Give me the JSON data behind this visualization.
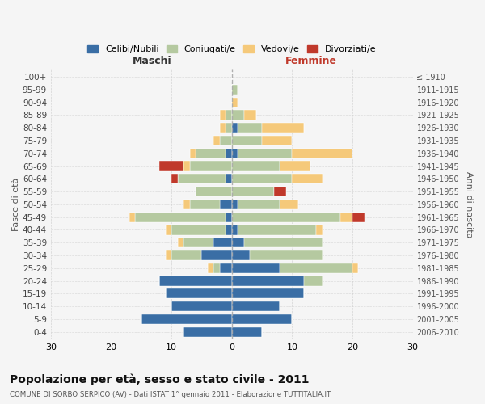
{
  "age_groups": [
    "0-4",
    "5-9",
    "10-14",
    "15-19",
    "20-24",
    "25-29",
    "30-34",
    "35-39",
    "40-44",
    "45-49",
    "50-54",
    "55-59",
    "60-64",
    "65-69",
    "70-74",
    "75-79",
    "80-84",
    "85-89",
    "90-94",
    "95-99",
    "100+"
  ],
  "birth_years": [
    "2006-2010",
    "2001-2005",
    "1996-2000",
    "1991-1995",
    "1986-1990",
    "1981-1985",
    "1976-1980",
    "1971-1975",
    "1966-1970",
    "1961-1965",
    "1956-1960",
    "1951-1955",
    "1946-1950",
    "1941-1945",
    "1936-1940",
    "1931-1935",
    "1926-1930",
    "1921-1925",
    "1916-1920",
    "1911-1915",
    "≤ 1910"
  ],
  "male": {
    "celibi": [
      8,
      15,
      10,
      11,
      12,
      2,
      5,
      3,
      1,
      1,
      2,
      0,
      1,
      0,
      1,
      0,
      0,
      0,
      0,
      0,
      0
    ],
    "coniugati": [
      0,
      0,
      0,
      0,
      0,
      1,
      5,
      5,
      9,
      15,
      5,
      6,
      8,
      7,
      5,
      2,
      1,
      1,
      0,
      0,
      0
    ],
    "vedovi": [
      0,
      0,
      0,
      0,
      0,
      1,
      1,
      1,
      1,
      1,
      1,
      0,
      0,
      1,
      1,
      1,
      1,
      1,
      0,
      0,
      0
    ],
    "divorziati": [
      0,
      0,
      0,
      0,
      0,
      0,
      0,
      0,
      0,
      0,
      0,
      0,
      1,
      4,
      0,
      0,
      0,
      0,
      0,
      0,
      0
    ]
  },
  "female": {
    "nubili": [
      5,
      10,
      8,
      12,
      12,
      8,
      3,
      2,
      1,
      0,
      1,
      0,
      0,
      0,
      1,
      0,
      1,
      0,
      0,
      0,
      0
    ],
    "coniugate": [
      0,
      0,
      0,
      0,
      3,
      12,
      12,
      13,
      13,
      18,
      7,
      7,
      10,
      8,
      9,
      5,
      4,
      2,
      0,
      1,
      0
    ],
    "vedove": [
      0,
      0,
      0,
      0,
      0,
      1,
      0,
      0,
      1,
      2,
      3,
      0,
      5,
      5,
      10,
      5,
      7,
      2,
      1,
      0,
      0
    ],
    "divorziate": [
      0,
      0,
      0,
      0,
      0,
      0,
      0,
      0,
      0,
      2,
      0,
      2,
      0,
      0,
      0,
      0,
      0,
      0,
      0,
      0,
      0
    ]
  },
  "colors": {
    "celibi": "#3a6ea5",
    "coniugati": "#b5c9a0",
    "vedovi": "#f5c97a",
    "divorziati": "#c0392b"
  },
  "legend_labels": [
    "Celibi/Nubili",
    "Coniugati/e",
    "Vedovi/e",
    "Divorziati/e"
  ],
  "title": "Popolazione per età, sesso e stato civile - 2011",
  "subtitle": "COMUNE DI SORBO SERPICO (AV) - Dati ISTAT 1° gennaio 2011 - Elaborazione TUTTITALIA.IT",
  "xlabel_left": "Maschi",
  "xlabel_right": "Femmine",
  "ylabel_left": "Fasce di età",
  "ylabel_right": "Anni di nascita",
  "xlim": 30,
  "background_color": "#f5f5f5",
  "grid_color": "#cccccc"
}
